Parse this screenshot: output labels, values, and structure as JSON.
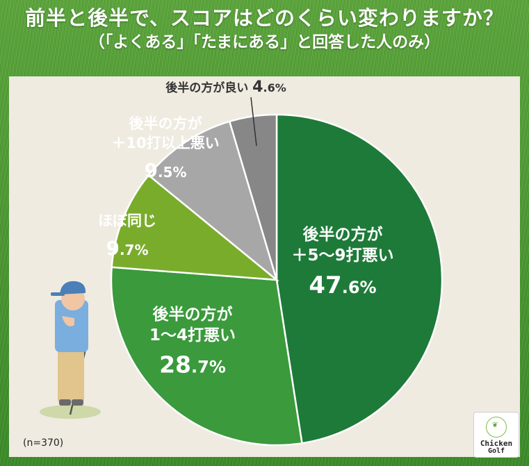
{
  "header": {
    "title": "前半と後半で、スコアはどのくらい変わりますか？",
    "subtitle": "（「よくある」「たまにある」と回答した人のみ）"
  },
  "chart_data": {
    "type": "pie",
    "start": "12 o'clock",
    "direction": "clockwise",
    "slices": [
      {
        "lines": [
          "後半の方が",
          "＋5〜9打悪い"
        ],
        "value": 47.6,
        "int": "47",
        "dec": ".6%",
        "color": "#1e7a38",
        "text_color": "#ffffff"
      },
      {
        "lines": [
          "後半の方が",
          "1〜4打悪い"
        ],
        "value": 28.7,
        "int": "28",
        "dec": ".7%",
        "color": "#3a9a3c",
        "text_color": "#ffffff"
      },
      {
        "lines": [
          "ほぼ同じ"
        ],
        "value": 9.7,
        "int": "9",
        "dec": ".7%",
        "color": "#7aac2c",
        "text_color": "#ffffff"
      },
      {
        "lines": [
          "後半の方が",
          "＋10打以上悪い"
        ],
        "value": 9.5,
        "int": "9",
        "dec": ".5%",
        "color": "#a7a7a7",
        "text_color": "#ffffff"
      },
      {
        "lines": [
          "後半の方が良い"
        ],
        "value": 4.6,
        "int": "4",
        "dec": ".6%",
        "color": "#878787",
        "text_color": "#333333"
      }
    ]
  },
  "note": "(n=370)",
  "logo": {
    "line1": "Chicken",
    "line2": "Golf"
  }
}
